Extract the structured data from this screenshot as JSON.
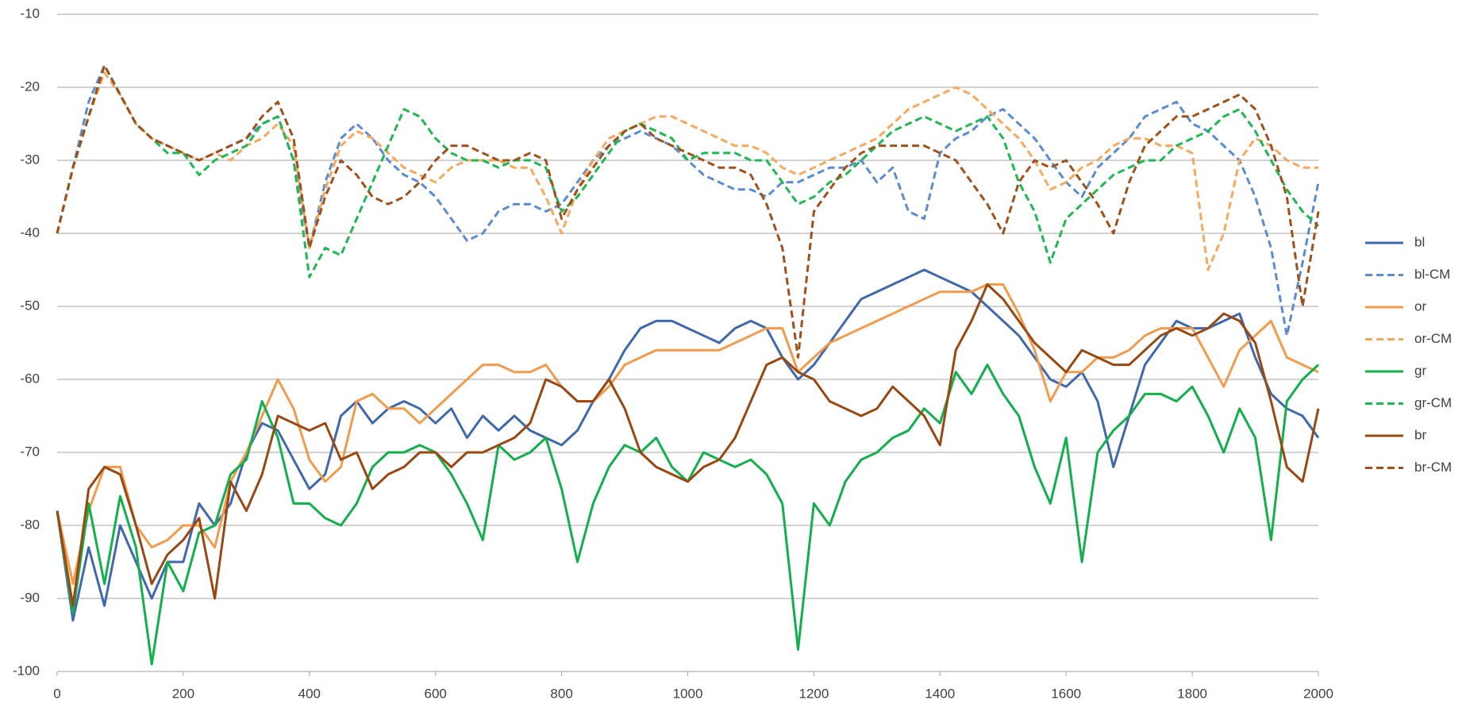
{
  "chart_data": {
    "type": "line",
    "legend": "right",
    "grid": true,
    "x": [
      0,
      25,
      50,
      75,
      100,
      125,
      150,
      175,
      200,
      225,
      250,
      275,
      300,
      325,
      350,
      375,
      400,
      425,
      450,
      475,
      500,
      525,
      550,
      575,
      600,
      625,
      650,
      675,
      700,
      725,
      750,
      775,
      800,
      825,
      850,
      875,
      900,
      925,
      950,
      975,
      1000,
      1025,
      1050,
      1075,
      1100,
      1125,
      1150,
      1175,
      1200,
      1225,
      1250,
      1275,
      1300,
      1325,
      1350,
      1375,
      1400,
      1425,
      1450,
      1475,
      1500,
      1525,
      1550,
      1575,
      1600,
      1625,
      1650,
      1675,
      1700,
      1725,
      1750,
      1775,
      1800,
      1825,
      1850,
      1875,
      1900,
      1925,
      1950,
      1975,
      2000
    ],
    "xlim": [
      0,
      2000
    ],
    "xticks": [
      0,
      200,
      400,
      600,
      800,
      1000,
      1200,
      1400,
      1600,
      1800,
      2000
    ],
    "ylim": [
      -100,
      -10
    ],
    "yticks": [
      -10,
      -20,
      -30,
      -40,
      -50,
      -60,
      -70,
      -80,
      -90,
      -100
    ],
    "series": [
      {
        "name": "bl",
        "color": "#4068ad",
        "dashed": false,
        "values": [
          -78,
          -93,
          -83,
          -91,
          -80,
          -85,
          -90,
          -85,
          -85,
          -77,
          -80,
          -77,
          -70,
          -66,
          -67,
          -71,
          -75,
          -73,
          -65,
          -63,
          -66,
          -64,
          -63,
          -64,
          -66,
          -64,
          -68,
          -65,
          -67,
          -65,
          -67,
          -68,
          -69,
          -67,
          -63,
          -60,
          -56,
          -53,
          -52,
          -52,
          -53,
          -54,
          -55,
          -53,
          -52,
          -53,
          -57,
          -60,
          -58,
          -55,
          -52,
          -49,
          -48,
          -47,
          -46,
          -45,
          -46,
          -47,
          -48,
          -50,
          -52,
          -54,
          -57,
          -60,
          -61,
          -59,
          -63,
          -72,
          -65,
          -58,
          -55,
          -52,
          -53,
          -53,
          -52,
          -51,
          -57,
          -62,
          -64,
          -65,
          -68
        ]
      },
      {
        "name": "bl-CM",
        "color": "#5a8ccf",
        "dashed": true,
        "values": [
          -40,
          -31,
          -22,
          -17,
          -21,
          -25,
          -27,
          -28,
          -29,
          -30,
          -29,
          -28,
          -27,
          -25,
          -24,
          -30,
          -42,
          -33,
          -27,
          -25,
          -27,
          -30,
          -32,
          -33,
          -35,
          -38,
          -41,
          -40,
          -37,
          -36,
          -36,
          -37,
          -36,
          -33,
          -30,
          -28,
          -27,
          -26,
          -27,
          -28,
          -30,
          -32,
          -33,
          -34,
          -34,
          -35,
          -33,
          -33,
          -32,
          -31,
          -31,
          -30,
          -33,
          -31,
          -37,
          -38,
          -29,
          -27,
          -26,
          -24,
          -23,
          -25,
          -27,
          -30,
          -33,
          -35,
          -31,
          -29,
          -27,
          -24,
          -23,
          -22,
          -25,
          -26,
          -28,
          -30,
          -35,
          -42,
          -54,
          -44,
          -33
        ]
      },
      {
        "name": "or",
        "color": "#f39b4c",
        "dashed": false,
        "values": [
          -78,
          -88,
          -78,
          -72,
          -72,
          -80,
          -83,
          -82,
          -80,
          -80,
          -83,
          -74,
          -70,
          -65,
          -60,
          -64,
          -71,
          -74,
          -72,
          -63,
          -62,
          -64,
          -64,
          -66,
          -64,
          -62,
          -60,
          -58,
          -58,
          -59,
          -59,
          -58,
          -61,
          -63,
          -63,
          -61,
          -58,
          -57,
          -56,
          -56,
          -56,
          -56,
          -56,
          -55,
          -54,
          -53,
          -53,
          -59,
          -57,
          -55,
          -54,
          -53,
          -52,
          -51,
          -50,
          -49,
          -48,
          -48,
          -48,
          -47,
          -47,
          -51,
          -56,
          -63,
          -59,
          -59,
          -57,
          -57,
          -56,
          -54,
          -53,
          -53,
          -53,
          -57,
          -61,
          -56,
          -54,
          -52,
          -57,
          -58,
          -59
        ]
      },
      {
        "name": "or-CM",
        "color": "#f7a85e",
        "dashed": true,
        "values": [
          -40,
          -31,
          -24,
          -18,
          -21,
          -25,
          -27,
          -28,
          -29,
          -30,
          -29,
          -30,
          -28,
          -27,
          -25,
          -28,
          -42,
          -34,
          -28,
          -26,
          -27,
          -29,
          -31,
          -32,
          -33,
          -31,
          -30,
          -30,
          -30,
          -31,
          -31,
          -35,
          -40,
          -34,
          -30,
          -27,
          -26,
          -25,
          -24,
          -24,
          -25,
          -26,
          -27,
          -28,
          -28,
          -29,
          -31,
          -32,
          -31,
          -30,
          -29,
          -28,
          -27,
          -25,
          -23,
          -22,
          -21,
          -20,
          -21,
          -23,
          -25,
          -27,
          -30,
          -34,
          -33,
          -31,
          -30,
          -28,
          -27,
          -27,
          -28,
          -28,
          -29,
          -45,
          -40,
          -30,
          -27,
          -28,
          -30,
          -31,
          -31
        ]
      },
      {
        "name": "gr",
        "color": "#12b04c",
        "dashed": false,
        "values": [
          -78,
          -92,
          -77,
          -88,
          -76,
          -83,
          -99,
          -85,
          -89,
          -81,
          -80,
          -73,
          -71,
          -63,
          -68,
          -77,
          -77,
          -79,
          -80,
          -77,
          -72,
          -70,
          -70,
          -69,
          -70,
          -73,
          -77,
          -82,
          -69,
          -71,
          -70,
          -68,
          -75,
          -85,
          -77,
          -72,
          -69,
          -70,
          -68,
          -72,
          -74,
          -70,
          -71,
          -72,
          -71,
          -73,
          -77,
          -97,
          -77,
          -80,
          -74,
          -71,
          -70,
          -68,
          -67,
          -64,
          -66,
          -59,
          -62,
          -58,
          -62,
          -65,
          -72,
          -77,
          -68,
          -85,
          -70,
          -67,
          -65,
          -62,
          -62,
          -63,
          -61,
          -65,
          -70,
          -64,
          -68,
          -82,
          -63,
          -60,
          -58
        ]
      },
      {
        "name": "gr-CM",
        "color": "#1db852",
        "dashed": true,
        "values": [
          -40,
          -31,
          -24,
          -17,
          -21,
          -25,
          -27,
          -29,
          -29,
          -32,
          -30,
          -29,
          -28,
          -25,
          -24,
          -30,
          -46,
          -42,
          -43,
          -38,
          -33,
          -28,
          -23,
          -24,
          -27,
          -29,
          -30,
          -30,
          -31,
          -30,
          -30,
          -31,
          -37,
          -35,
          -32,
          -29,
          -26,
          -25,
          -26,
          -27,
          -30,
          -29,
          -29,
          -29,
          -30,
          -30,
          -33,
          -36,
          -35,
          -33,
          -32,
          -30,
          -28,
          -26,
          -25,
          -24,
          -25,
          -26,
          -25,
          -24,
          -27,
          -33,
          -37,
          -44,
          -38,
          -36,
          -34,
          -32,
          -31,
          -30,
          -30,
          -28,
          -27,
          -26,
          -24,
          -23,
          -26,
          -30,
          -34,
          -37,
          -39
        ]
      },
      {
        "name": "br",
        "color": "#994812",
        "dashed": false,
        "values": [
          -78,
          -91,
          -75,
          -72,
          -73,
          -80,
          -88,
          -84,
          -82,
          -79,
          -90,
          -74,
          -78,
          -73,
          -65,
          -66,
          -67,
          -66,
          -71,
          -70,
          -75,
          -73,
          -72,
          -70,
          -70,
          -72,
          -70,
          -70,
          -69,
          -68,
          -66,
          -60,
          -61,
          -63,
          -63,
          -60,
          -64,
          -70,
          -72,
          -73,
          -74,
          -72,
          -71,
          -68,
          -63,
          -58,
          -57,
          -59,
          -60,
          -63,
          -64,
          -65,
          -64,
          -61,
          -63,
          -65,
          -69,
          -56,
          -52,
          -47,
          -49,
          -52,
          -55,
          -57,
          -59,
          -56,
          -57,
          -58,
          -58,
          -56,
          -54,
          -53,
          -54,
          -53,
          -51,
          -52,
          -55,
          -63,
          -72,
          -74,
          -64
        ]
      },
      {
        "name": "br-CM",
        "color": "#a0501a",
        "dashed": true,
        "values": [
          -40,
          -31,
          -24,
          -17,
          -21,
          -25,
          -27,
          -28,
          -29,
          -30,
          -29,
          -28,
          -27,
          -24,
          -22,
          -27,
          -42,
          -35,
          -30,
          -32,
          -35,
          -36,
          -35,
          -33,
          -30,
          -28,
          -28,
          -29,
          -30,
          -30,
          -29,
          -30,
          -38,
          -34,
          -31,
          -28,
          -26,
          -25,
          -27,
          -28,
          -29,
          -30,
          -31,
          -31,
          -32,
          -36,
          -42,
          -57,
          -37,
          -34,
          -31,
          -29,
          -28,
          -28,
          -28,
          -28,
          -29,
          -30,
          -33,
          -36,
          -40,
          -33,
          -30,
          -31,
          -30,
          -33,
          -36,
          -40,
          -33,
          -28,
          -26,
          -24,
          -24,
          -23,
          -22,
          -21,
          -23,
          -28,
          -35,
          -50,
          -37
        ]
      }
    ]
  }
}
